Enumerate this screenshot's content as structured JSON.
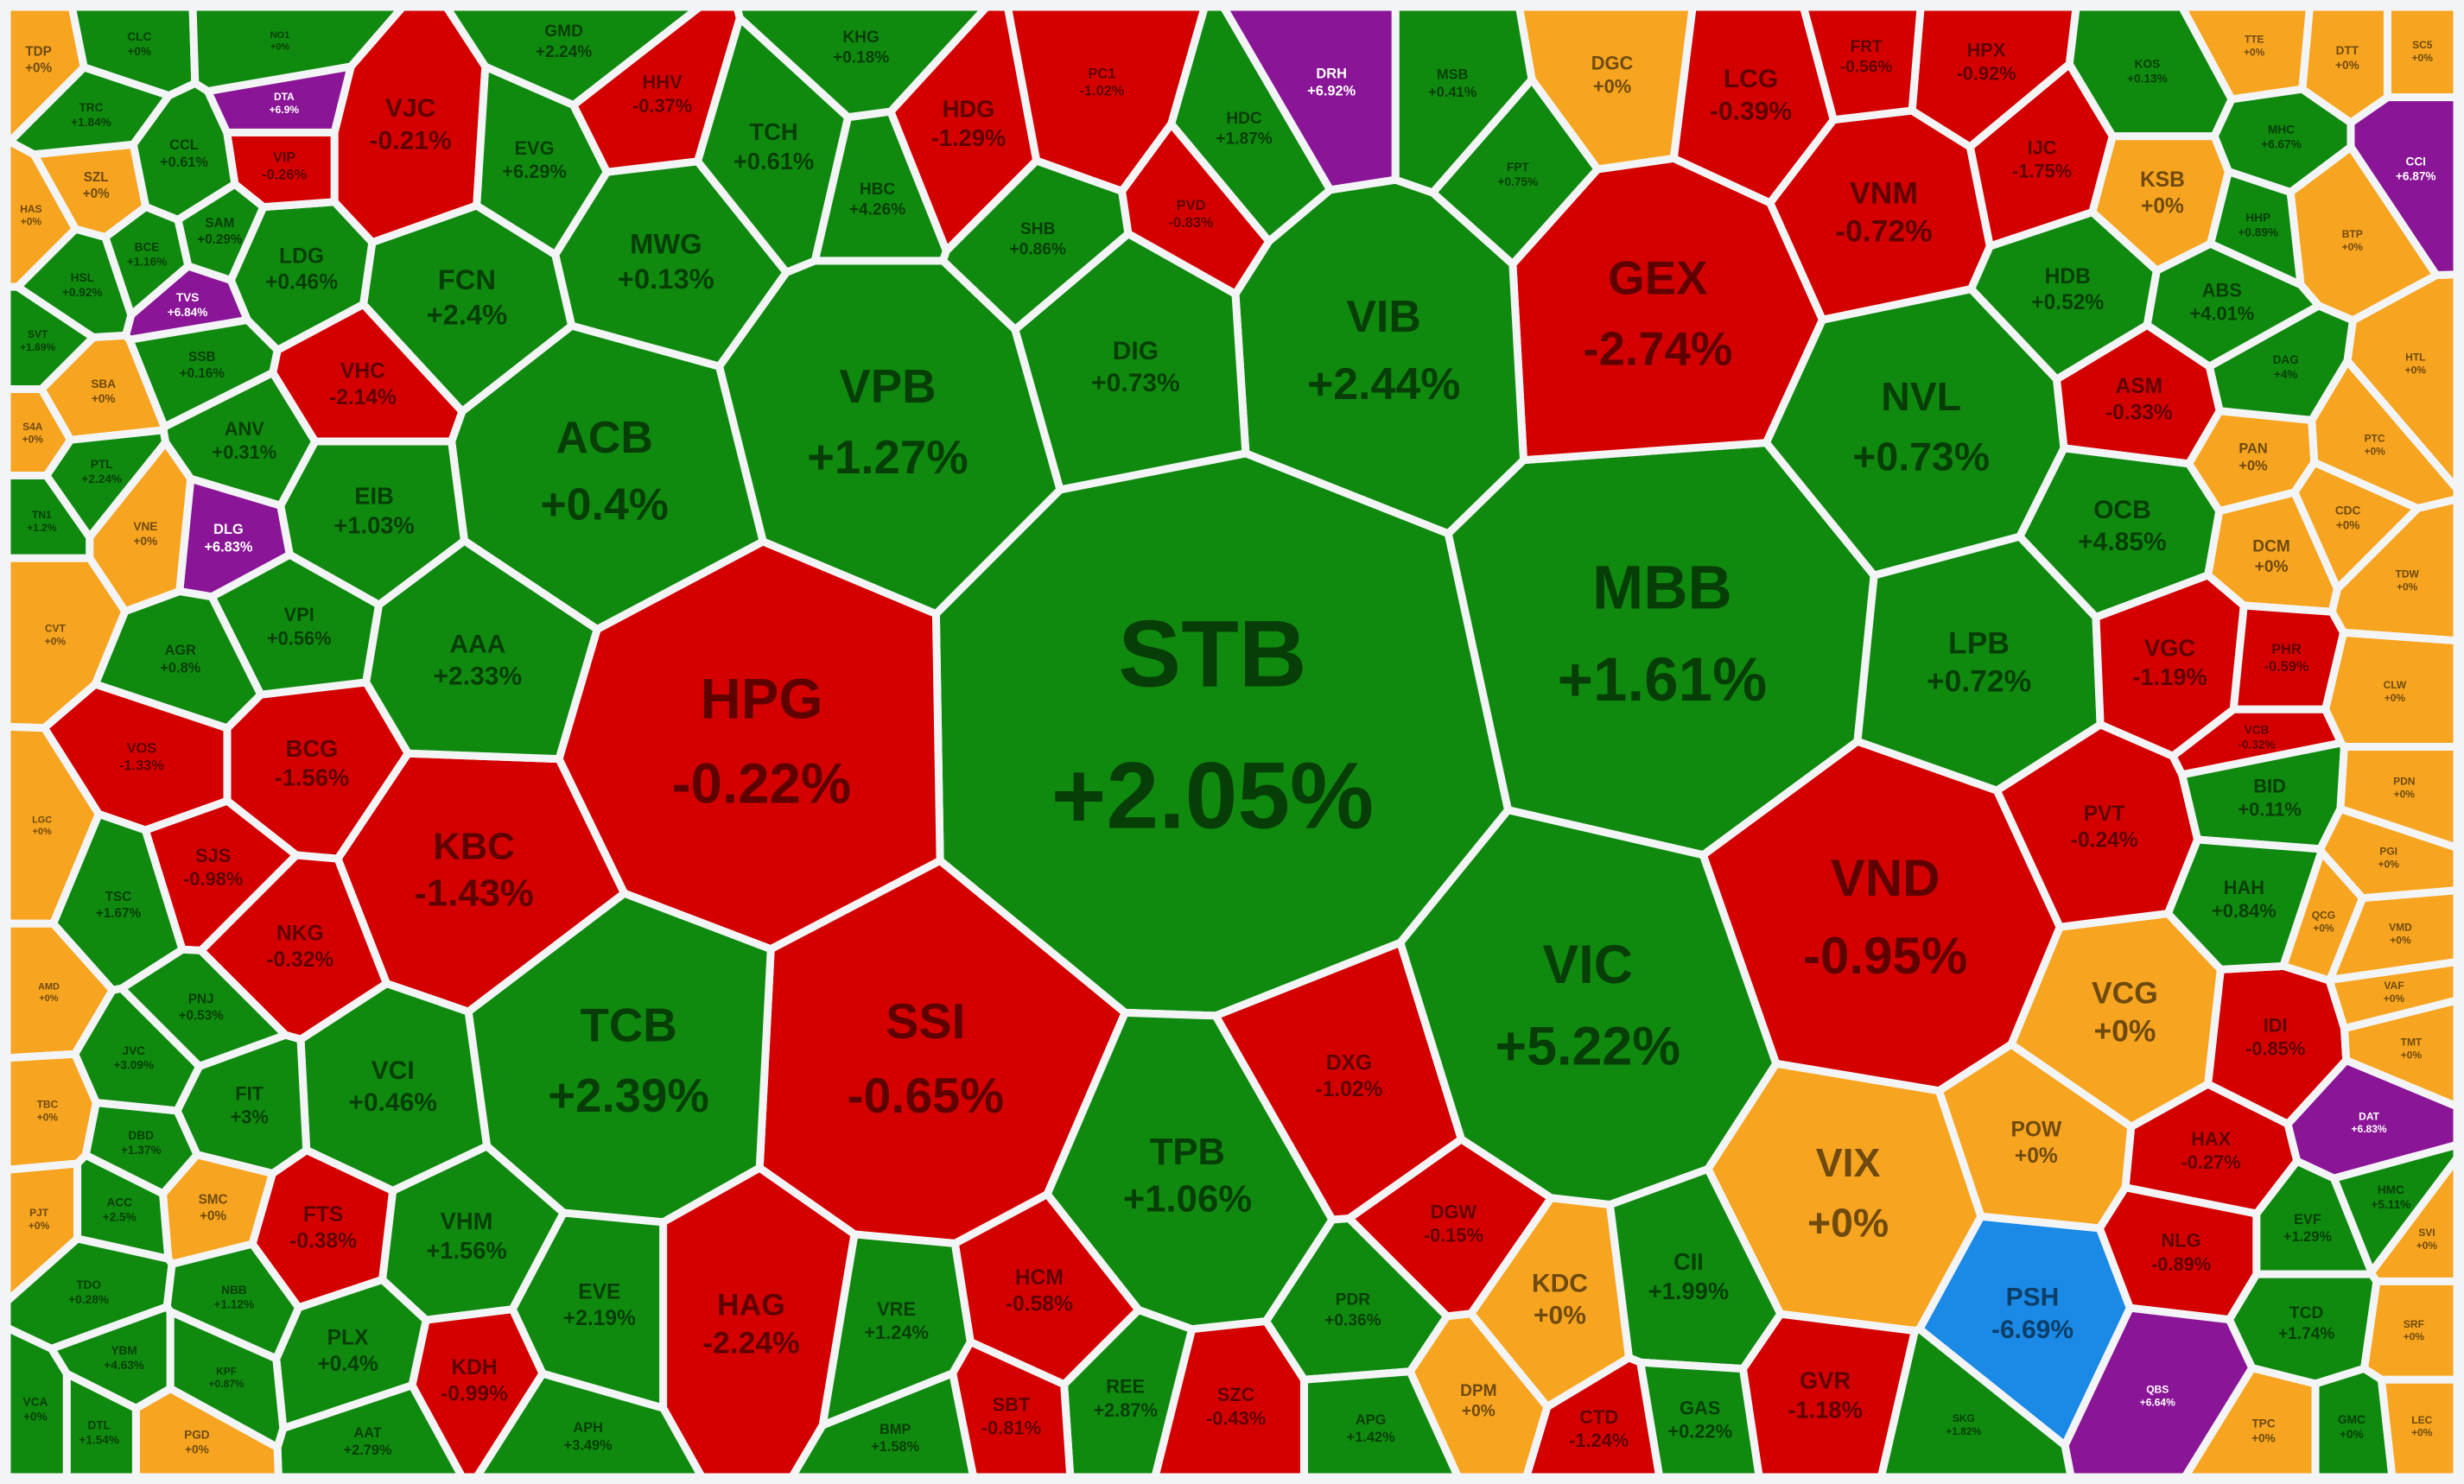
{
  "nodes": [
    {
      "ticker": "STB",
      "change": "+2.05%",
      "color": "#0f8a0f"
    },
    {
      "ticker": "HPG",
      "change": "-0.22%",
      "color": "#d40000"
    },
    {
      "ticker": "MBB",
      "change": "+1.61%",
      "color": "#0f8a0f"
    },
    {
      "ticker": "VIC",
      "change": "+5.22%",
      "color": "#0f8a0f"
    },
    {
      "ticker": "VND",
      "change": "-0.95%",
      "color": "#d40000"
    },
    {
      "ticker": "SSI",
      "change": "-0.65%",
      "color": "#d40000"
    },
    {
      "ticker": "TCB",
      "change": "+2.39%",
      "color": "#0f8a0f"
    },
    {
      "ticker": "GEX",
      "change": "-2.74%",
      "color": "#d40000"
    },
    {
      "ticker": "VIB",
      "change": "+2.44%",
      "color": "#0f8a0f"
    },
    {
      "ticker": "VPB",
      "change": "+1.27%",
      "color": "#0f8a0f"
    },
    {
      "ticker": "ACB",
      "change": "+0.4%",
      "color": "#0f8a0f"
    },
    {
      "ticker": "KBC",
      "change": "-1.43%",
      "color": "#d40000"
    },
    {
      "ticker": "VIX",
      "change": "+0%",
      "color": "#f7a520"
    },
    {
      "ticker": "TPB",
      "change": "+1.06%",
      "color": "#0f8a0f"
    },
    {
      "ticker": "NVL",
      "change": "+0.73%",
      "color": "#0f8a0f"
    },
    {
      "ticker": "HAG",
      "change": "-2.24%",
      "color": "#d40000"
    },
    {
      "ticker": "LPB",
      "change": "+0.72%",
      "color": "#0f8a0f"
    },
    {
      "ticker": "VCG",
      "change": "+0%",
      "color": "#f7a520"
    },
    {
      "ticker": "POW",
      "change": "+0%",
      "color": "#f7a520"
    },
    {
      "ticker": "PSH",
      "change": "-6.69%",
      "color": "#1a8ae6"
    },
    {
      "ticker": "KDC",
      "change": "+0%",
      "color": "#f7a520"
    },
    {
      "ticker": "DIG",
      "change": "+0.73%",
      "color": "#0f8a0f"
    },
    {
      "ticker": "VNM",
      "change": "-0.72%",
      "color": "#d40000"
    },
    {
      "ticker": "LCG",
      "change": "-0.39%",
      "color": "#d40000"
    },
    {
      "ticker": "FCN",
      "change": "+2.4%",
      "color": "#0f8a0f"
    },
    {
      "ticker": "MWG",
      "change": "+0.13%",
      "color": "#0f8a0f"
    },
    {
      "ticker": "AAA",
      "change": "+2.33%",
      "color": "#0f8a0f"
    },
    {
      "ticker": "VCI",
      "change": "+0.46%",
      "color": "#0f8a0f"
    },
    {
      "ticker": "VHM",
      "change": "+1.56%",
      "color": "#0f8a0f"
    },
    {
      "ticker": "EIB",
      "change": "+1.03%",
      "color": "#0f8a0f"
    },
    {
      "ticker": "VJC",
      "change": "-0.21%",
      "color": "#d40000"
    },
    {
      "ticker": "HDG",
      "change": "-1.29%",
      "color": "#d40000"
    },
    {
      "ticker": "TCH",
      "change": "+0.61%",
      "color": "#0f8a0f"
    },
    {
      "ticker": "BCG",
      "change": "-1.56%",
      "color": "#d40000"
    },
    {
      "ticker": "NKG",
      "change": "-0.32%",
      "color": "#d40000"
    },
    {
      "ticker": "SJS",
      "change": "-0.98%",
      "color": "#d40000"
    },
    {
      "ticker": "FTS",
      "change": "-0.38%",
      "color": "#d40000"
    },
    {
      "ticker": "DXG",
      "change": "-1.02%",
      "color": "#d40000"
    },
    {
      "ticker": "OCB",
      "change": "+4.85%",
      "color": "#0f8a0f"
    },
    {
      "ticker": "ASM",
      "change": "-0.33%",
      "color": "#d40000"
    },
    {
      "ticker": "VGC",
      "change": "-1.19%",
      "color": "#d40000"
    },
    {
      "ticker": "PVT",
      "change": "-0.24%",
      "color": "#d40000"
    },
    {
      "ticker": "IDI",
      "change": "-0.85%",
      "color": "#d40000"
    },
    {
      "ticker": "HAX",
      "change": "-0.27%",
      "color": "#d40000"
    },
    {
      "ticker": "NLG",
      "change": "-0.89%",
      "color": "#d40000"
    },
    {
      "ticker": "BID",
      "change": "+0.11%",
      "color": "#0f8a0f"
    },
    {
      "ticker": "HAH",
      "change": "+0.84%",
      "color": "#0f8a0f"
    },
    {
      "ticker": "KSB",
      "change": "+0%",
      "color": "#f7a520"
    },
    {
      "ticker": "DGC",
      "change": "+0%",
      "color": "#f7a520"
    },
    {
      "ticker": "HDB",
      "change": "+0.52%",
      "color": "#0f8a0f"
    },
    {
      "ticker": "ABS",
      "change": "+4.01%",
      "color": "#0f8a0f"
    },
    {
      "ticker": "HPX",
      "change": "-0.92%",
      "color": "#d40000"
    },
    {
      "ticker": "IJC",
      "change": "-1.75%",
      "color": "#d40000"
    },
    {
      "ticker": "FRT",
      "change": "-0.56%",
      "color": "#d40000"
    },
    {
      "ticker": "VRE",
      "change": "+1.24%",
      "color": "#0f8a0f"
    },
    {
      "ticker": "HCM",
      "change": "-0.58%",
      "color": "#d40000"
    },
    {
      "ticker": "CII",
      "change": "+1.99%",
      "color": "#0f8a0f"
    },
    {
      "ticker": "GAS",
      "change": "+0.22%",
      "color": "#0f8a0f"
    },
    {
      "ticker": "GVR",
      "change": "-1.18%",
      "color": "#d40000"
    },
    {
      "ticker": "CTD",
      "change": "-1.24%",
      "color": "#d40000"
    },
    {
      "ticker": "DPM",
      "change": "+0%",
      "color": "#f7a520"
    },
    {
      "ticker": "DGW",
      "change": "-0.15%",
      "color": "#d40000"
    },
    {
      "ticker": "PDR",
      "change": "+0.36%",
      "color": "#0f8a0f"
    },
    {
      "ticker": "APG",
      "change": "+1.42%",
      "color": "#0f8a0f"
    },
    {
      "ticker": "SZC",
      "change": "-0.43%",
      "color": "#d40000"
    },
    {
      "ticker": "REE",
      "change": "+2.87%",
      "color": "#0f8a0f"
    },
    {
      "ticker": "SBT",
      "change": "-0.81%",
      "color": "#d40000"
    },
    {
      "ticker": "BMP",
      "change": "+1.58%",
      "color": "#0f8a0f"
    },
    {
      "ticker": "EVE",
      "change": "+2.19%",
      "color": "#0f8a0f"
    },
    {
      "ticker": "KDH",
      "change": "-0.99%",
      "color": "#d40000"
    },
    {
      "ticker": "PLX",
      "change": "+0.4%",
      "color": "#0f8a0f"
    },
    {
      "ticker": "FIT",
      "change": "+3%",
      "color": "#0f8a0f"
    },
    {
      "ticker": "VPI",
      "change": "+0.56%",
      "color": "#0f8a0f"
    },
    {
      "ticker": "ANV",
      "change": "+0.31%",
      "color": "#0f8a0f"
    },
    {
      "ticker": "LDG",
      "change": "+0.46%",
      "color": "#0f8a0f"
    },
    {
      "ticker": "VHC",
      "change": "-2.14%",
      "color": "#d40000"
    },
    {
      "ticker": "EVG",
      "change": "+6.29%",
      "color": "#0f8a0f"
    },
    {
      "ticker": "HHV",
      "change": "-0.37%",
      "color": "#d40000"
    },
    {
      "ticker": "GMD",
      "change": "+2.24%",
      "color": "#0f8a0f"
    },
    {
      "ticker": "DRH",
      "change": "+6.92%",
      "color": "#8a1597"
    },
    {
      "ticker": "HDC",
      "change": "+1.87%",
      "color": "#0f8a0f"
    },
    {
      "ticker": "MSB",
      "change": "+0.41%",
      "color": "#0f8a0f"
    },
    {
      "ticker": "KHG",
      "change": "+0.18%",
      "color": "#0f8a0f"
    },
    {
      "ticker": "HBC",
      "change": "+4.26%",
      "color": "#0f8a0f"
    },
    {
      "ticker": "SHB",
      "change": "+0.86%",
      "color": "#0f8a0f"
    },
    {
      "ticker": "PC1",
      "change": "-1.02%",
      "color": "#d40000"
    },
    {
      "ticker": "DLG",
      "change": "+6.83%",
      "color": "#8a1597"
    },
    {
      "ticker": "VIP",
      "change": "-0.26%",
      "color": "#d40000"
    },
    {
      "ticker": "CCL",
      "change": "+0.61%",
      "color": "#0f8a0f"
    },
    {
      "ticker": "TVS",
      "change": "+6.84%",
      "color": "#8a1597"
    },
    {
      "ticker": "SSB",
      "change": "+0.16%",
      "color": "#0f8a0f"
    },
    {
      "ticker": "SAM",
      "change": "+0.29%",
      "color": "#0f8a0f"
    },
    {
      "ticker": "AGR",
      "change": "+0.8%",
      "color": "#0f8a0f"
    },
    {
      "ticker": "VOS",
      "change": "-1.33%",
      "color": "#d40000"
    },
    {
      "ticker": "TSC",
      "change": "+1.67%",
      "color": "#0f8a0f"
    },
    {
      "ticker": "PNJ",
      "change": "+0.53%",
      "color": "#0f8a0f"
    },
    {
      "ticker": "SMC",
      "change": "+0%",
      "color": "#f7a520"
    },
    {
      "ticker": "AAT",
      "change": "+2.79%",
      "color": "#0f8a0f"
    },
    {
      "ticker": "APH",
      "change": "+3.49%",
      "color": "#0f8a0f"
    },
    {
      "ticker": "TDP",
      "change": "+0%",
      "color": "#f7a520"
    },
    {
      "ticker": "CLC",
      "change": "+0%",
      "color": "#0f8a0f"
    },
    {
      "ticker": "SZL",
      "change": "+0%",
      "color": "#f7a520"
    },
    {
      "ticker": "SBA",
      "change": "+0%",
      "color": "#f7a520"
    },
    {
      "ticker": "VNE",
      "change": "+0%",
      "color": "#f7a520"
    },
    {
      "ticker": "VCA",
      "change": "+0%",
      "color": "#0f8a0f"
    },
    {
      "ticker": "DTL",
      "change": "+1.54%",
      "color": "#0f8a0f"
    },
    {
      "ticker": "PGD",
      "change": "+0%",
      "color": "#f7a520"
    },
    {
      "ticker": "YBM",
      "change": "+4.63%",
      "color": "#0f8a0f"
    },
    {
      "ticker": "EVF",
      "change": "+1.29%",
      "color": "#0f8a0f"
    },
    {
      "ticker": "TCD",
      "change": "+1.74%",
      "color": "#0f8a0f"
    },
    {
      "ticker": "HMC",
      "change": "+5.11%",
      "color": "#0f8a0f"
    },
    {
      "ticker": "GMC",
      "change": "+0%",
      "color": "#0f8a0f"
    },
    {
      "ticker": "TPC",
      "change": "+0%",
      "color": "#f7a520"
    },
    {
      "ticker": "LEC",
      "change": "+0%",
      "color": "#f7a520"
    },
    {
      "ticker": "SRF",
      "change": "+0%",
      "color": "#f7a520"
    },
    {
      "ticker": "SVI",
      "change": "+0%",
      "color": "#f7a520"
    },
    {
      "ticker": "DCM",
      "change": "+0%",
      "color": "#f7a520"
    },
    {
      "ticker": "PAN",
      "change": "+0%",
      "color": "#f7a520"
    },
    {
      "ticker": "DTT",
      "change": "+0%",
      "color": "#f7a520"
    },
    {
      "ticker": "SC5",
      "change": "+0%",
      "color": "#f7a520"
    },
    {
      "ticker": "TTE",
      "change": "+0%",
      "color": "#f7a520"
    },
    {
      "ticker": "CDC",
      "change": "+0%",
      "color": "#f7a520"
    },
    {
      "ticker": "PTC",
      "change": "+0%",
      "color": "#f7a520"
    },
    {
      "ticker": "HTL",
      "change": "+0%",
      "color": "#f7a520"
    },
    {
      "ticker": "CCI",
      "change": "+6.87%",
      "color": "#8a1597"
    },
    {
      "ticker": "DAT",
      "change": "+6.83%",
      "color": "#8a1597"
    },
    {
      "ticker": "QBS",
      "change": "+6.64%",
      "color": "#8a1597"
    },
    {
      "ticker": "HHP",
      "change": "+0.89%",
      "color": "#0f8a0f"
    },
    {
      "ticker": "BTP",
      "change": "+0%",
      "color": "#f7a520"
    },
    {
      "ticker": "MHC",
      "change": "+6.67%",
      "color": "#0f8a0f"
    },
    {
      "ticker": "KOS",
      "change": "+0.13%",
      "color": "#0f8a0f"
    },
    {
      "ticker": "VMD",
      "change": "+0%",
      "color": "#f7a520"
    },
    {
      "ticker": "QCG",
      "change": "+0%",
      "color": "#f7a520"
    },
    {
      "ticker": "PGI",
      "change": "+0%",
      "color": "#f7a520"
    },
    {
      "ticker": "PDN",
      "change": "+0%",
      "color": "#f7a520"
    },
    {
      "ticker": "CLW",
      "change": "+0%",
      "color": "#f7a520"
    },
    {
      "ticker": "TDW",
      "change": "+0%",
      "color": "#f7a520"
    },
    {
      "ticker": "VAF",
      "change": "+0%",
      "color": "#f7a520"
    },
    {
      "ticker": "TMT",
      "change": "+0%",
      "color": "#f7a520"
    },
    {
      "ticker": "LGC",
      "change": "+0%",
      "color": "#f7a520"
    },
    {
      "ticker": "AMD",
      "change": "+0%",
      "color": "#f7a520"
    },
    {
      "ticker": "TBC",
      "change": "+0%",
      "color": "#f7a520"
    },
    {
      "ticker": "PJT",
      "change": "+0%",
      "color": "#f7a520"
    },
    {
      "ticker": "CVT",
      "change": "+0%",
      "color": "#f7a520"
    },
    {
      "ticker": "S4A",
      "change": "+0%",
      "color": "#f7a520"
    },
    {
      "ticker": "HAS",
      "change": "+0%",
      "color": "#f7a520"
    },
    {
      "ticker": "SVT",
      "change": "+1.69%",
      "color": "#0f8a0f"
    },
    {
      "ticker": "TN1",
      "change": "+1.2%",
      "color": "#0f8a0f"
    },
    {
      "ticker": "TRC",
      "change": "+1.84%",
      "color": "#0f8a0f"
    },
    {
      "ticker": "HSL",
      "change": "+0.92%",
      "color": "#0f8a0f"
    },
    {
      "ticker": "PTL",
      "change": "+2.24%",
      "color": "#0f8a0f"
    },
    {
      "ticker": "BCE",
      "change": "+1.16%",
      "color": "#0f8a0f"
    },
    {
      "ticker": "DBD",
      "change": "+1.37%",
      "color": "#0f8a0f"
    },
    {
      "ticker": "JVC",
      "change": "+3.09%",
      "color": "#0f8a0f"
    },
    {
      "ticker": "ACC",
      "change": "+2.5%",
      "color": "#0f8a0f"
    },
    {
      "ticker": "TDO",
      "change": "+0.28%",
      "color": "#0f8a0f"
    },
    {
      "ticker": "NBB",
      "change": "+1.12%",
      "color": "#0f8a0f"
    },
    {
      "ticker": "KPF",
      "change": "+0.87%",
      "color": "#0f8a0f"
    },
    {
      "ticker": "DTA",
      "change": "+6.9%",
      "color": "#8a1597"
    },
    {
      "ticker": "NO1",
      "change": "+0%",
      "color": "#0f8a0f"
    },
    {
      "ticker": "PHR",
      "change": "-0.59%",
      "color": "#d40000"
    },
    {
      "ticker": "VCB",
      "change": "-0.32%",
      "color": "#d40000"
    },
    {
      "ticker": "FPT",
      "change": "+0.75%",
      "color": "#0f8a0f"
    },
    {
      "ticker": "DAG",
      "change": "+4%",
      "color": "#0f8a0f"
    },
    {
      "ticker": "SKG",
      "change": "+1.82%",
      "color": "#0f8a0f"
    },
    {
      "ticker": "PVD",
      "change": "-0.83%",
      "color": "#d40000"
    }
  ]
}
